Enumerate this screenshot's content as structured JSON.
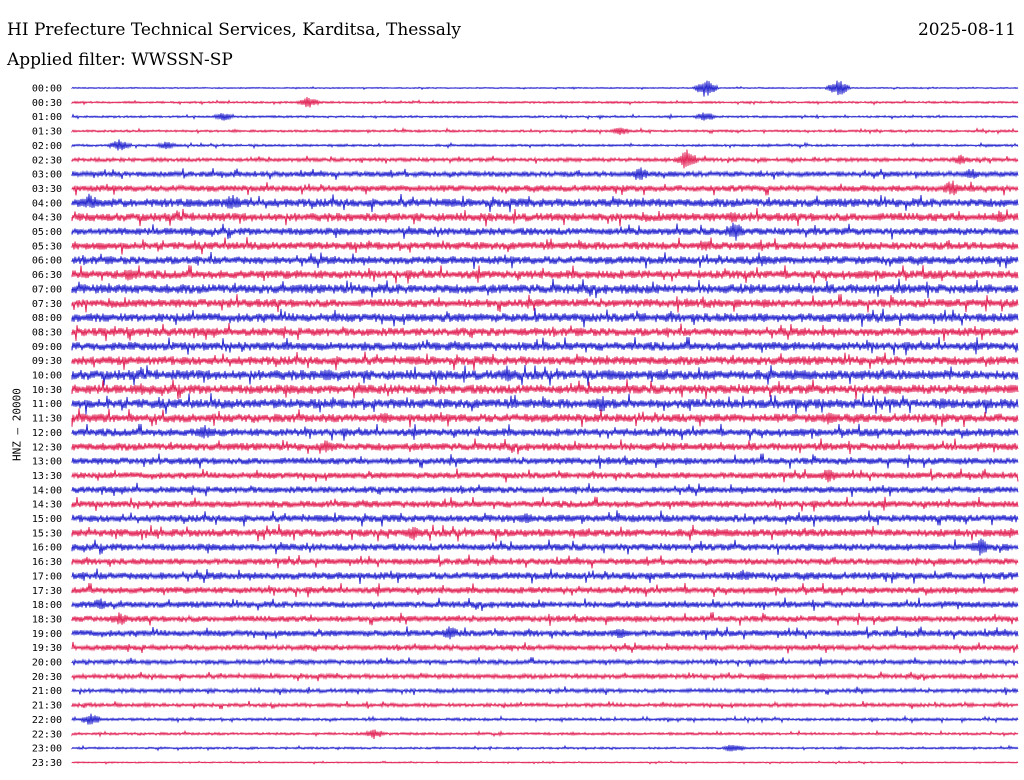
{
  "header": {
    "title": "HI Prefecture Technical Services, Karditsa, Thessaly",
    "date": "2025-08-11",
    "filter": "Applied filter: WWSSN-SP"
  },
  "chart_data": {
    "type": "line",
    "title": "HI Prefecture Technical Services, Karditsa, Thessaly",
    "ylabel": "HNZ – 20000",
    "colors": [
      "#1a1acc",
      "#e0194e"
    ],
    "row_labels": [
      "00:00",
      "00:30",
      "01:00",
      "01:30",
      "02:00",
      "02:30",
      "03:00",
      "03:30",
      "04:00",
      "04:30",
      "05:00",
      "05:30",
      "06:00",
      "06:30",
      "07:00",
      "07:30",
      "08:00",
      "08:30",
      "09:00",
      "09:30",
      "10:00",
      "10:30",
      "11:00",
      "11:30",
      "12:00",
      "12:30",
      "13:00",
      "13:30",
      "14:00",
      "14:30",
      "15:00",
      "15:30",
      "16:00",
      "16:30",
      "17:00",
      "17:30",
      "18:00",
      "18:30",
      "19:00",
      "19:30",
      "20:00",
      "20:30",
      "21:00",
      "21:30",
      "22:00",
      "22:30",
      "23:00",
      "23:30"
    ],
    "row_noise": [
      0.5,
      0.8,
      0.8,
      0.9,
      0.9,
      1.5,
      2.2,
      2.6,
      3.5,
      3.4,
      3.0,
      3.2,
      3.3,
      3.5,
      3.8,
      3.4,
      3.6,
      3.4,
      3.5,
      3.6,
      4.0,
      3.8,
      3.9,
      3.5,
      3.2,
      3.1,
      2.8,
      2.6,
      2.7,
      2.8,
      3.0,
      3.2,
      2.9,
      2.6,
      3.0,
      2.7,
      2.6,
      2.5,
      2.6,
      2.2,
      1.8,
      1.8,
      1.6,
      1.5,
      1.1,
      1.0,
      0.8,
      0.5
    ],
    "events": [
      [
        [
          0.67,
          9
        ],
        [
          0.81,
          8
        ]
      ],
      [
        [
          0.25,
          6
        ]
      ],
      [
        [
          0.16,
          4
        ],
        [
          0.67,
          5
        ]
      ],
      [
        [
          0.58,
          4
        ]
      ],
      [
        [
          0.05,
          6
        ],
        [
          0.1,
          4
        ]
      ],
      [
        [
          0.65,
          10
        ],
        [
          0.94,
          5
        ]
      ],
      [
        [
          0.6,
          7
        ],
        [
          0.95,
          6
        ]
      ],
      [
        [
          0.93,
          8
        ]
      ],
      [
        [
          0.17,
          9
        ],
        [
          0.02,
          8
        ]
      ],
      [
        [
          0.7,
          6
        ],
        [
          0.98,
          6
        ]
      ],
      [
        [
          0.7,
          10
        ]
      ],
      [
        [
          0.67,
          6
        ]
      ],
      [
        [
          0.73,
          6
        ]
      ],
      [
        [
          0.06,
          6
        ]
      ],
      [],
      [],
      [],
      [],
      [],
      [],
      [
        [
          0.46,
          7
        ],
        [
          0.57,
          6
        ],
        [
          0.27,
          6
        ]
      ],
      [],
      [
        [
          0.56,
          8
        ],
        [
          0.92,
          6
        ]
      ],
      [
        [
          0.33,
          6
        ],
        [
          0.8,
          7
        ]
      ],
      [
        [
          0.14,
          8
        ]
      ],
      [
        [
          0.27,
          6
        ]
      ],
      [],
      [
        [
          0.8,
          7
        ]
      ],
      [],
      [],
      [
        [
          0.48,
          6
        ]
      ],
      [
        [
          0.36,
          7
        ]
      ],
      [
        [
          0.96,
          9
        ]
      ],
      [],
      [
        [
          0.71,
          6
        ]
      ],
      [],
      [
        [
          0.03,
          6
        ]
      ],
      [
        [
          0.05,
          7
        ]
      ],
      [
        [
          0.4,
          7
        ],
        [
          0.58,
          6
        ]
      ],
      [],
      [],
      [
        [
          0.73,
          5
        ]
      ],
      [],
      [],
      [
        [
          0.02,
          6
        ]
      ],
      [
        [
          0.32,
          5
        ]
      ],
      [
        [
          0.7,
          5
        ]
      ],
      []
    ]
  }
}
